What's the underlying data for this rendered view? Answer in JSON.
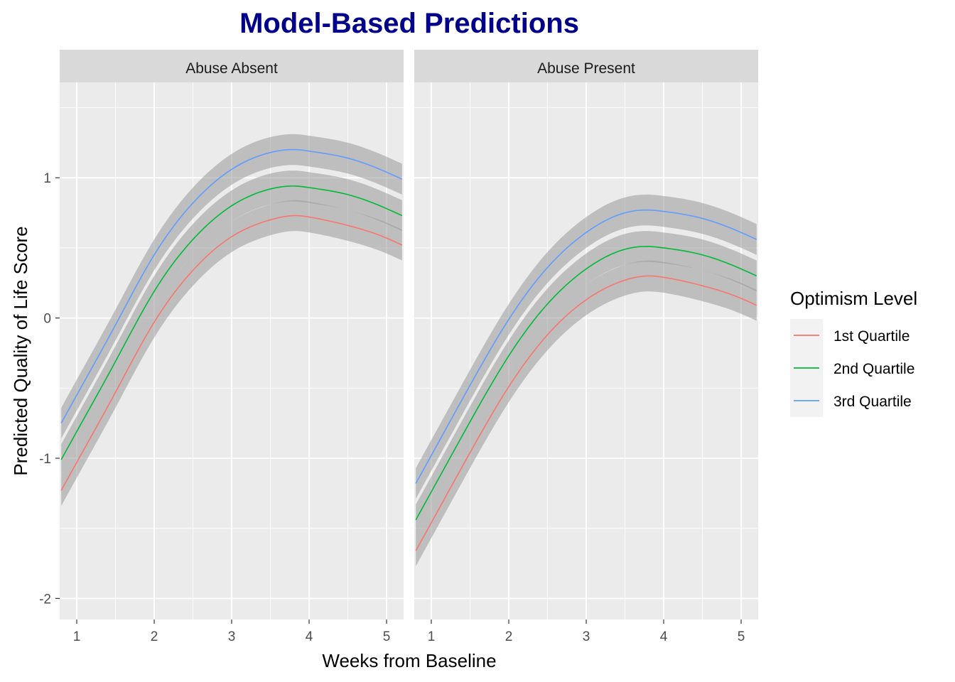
{
  "chart_data": {
    "type": "line",
    "title": "Model-Based Predictions",
    "xlabel": "Weeks from Baseline",
    "ylabel": "Predicted Quality of Life Score",
    "xlim": [
      0.78,
      5.22
    ],
    "ylim": [
      -2.15,
      1.68
    ],
    "x_ticks": [
      1,
      2,
      3,
      4,
      5
    ],
    "y_ticks": [
      -2,
      -1,
      0,
      1
    ],
    "grid": true,
    "ribbon_halfwidth": 0.11,
    "legend": {
      "title": "Optimism Level",
      "position": "right",
      "entries": [
        {
          "label": "1st Quartile",
          "color": "#F8766D"
        },
        {
          "label": "2nd Quartile",
          "color": "#00BA38"
        },
        {
          "label": "3rd Quartile",
          "color": "#619CFF"
        }
      ]
    },
    "panels": [
      {
        "label": "Abuse Absent",
        "series": [
          {
            "name": "1st Quartile",
            "color": "#F8766D",
            "x": [
              0.8,
              1.0,
              1.5,
              2.0,
              2.5,
              3.0,
              3.5,
              3.85,
              4.0,
              4.5,
              5.0,
              5.2
            ],
            "y": [
              -1.23,
              -1.03,
              -0.53,
              -0.03,
              0.34,
              0.58,
              0.7,
              0.73,
              0.72,
              0.66,
              0.57,
              0.52
            ]
          },
          {
            "name": "2nd Quartile",
            "color": "#00BA38",
            "x": [
              0.8,
              1.0,
              1.5,
              2.0,
              2.5,
              3.0,
              3.5,
              3.85,
              4.0,
              4.5,
              5.0,
              5.2
            ],
            "y": [
              -1.01,
              -0.81,
              -0.31,
              0.19,
              0.56,
              0.8,
              0.92,
              0.94,
              0.93,
              0.88,
              0.78,
              0.73
            ]
          },
          {
            "name": "3rd Quartile",
            "color": "#619CFF",
            "x": [
              0.8,
              1.0,
              1.5,
              2.0,
              2.5,
              3.0,
              3.5,
              3.85,
              4.0,
              4.5,
              5.0,
              5.2
            ],
            "y": [
              -0.75,
              -0.55,
              -0.05,
              0.45,
              0.82,
              1.06,
              1.18,
              1.2,
              1.19,
              1.14,
              1.04,
              0.99
            ]
          }
        ]
      },
      {
        "label": "Abuse Present",
        "series": [
          {
            "name": "1st Quartile",
            "color": "#F8766D",
            "x": [
              0.8,
              1.0,
              1.5,
              2.0,
              2.5,
              3.0,
              3.5,
              3.8,
              4.0,
              4.5,
              5.0,
              5.2
            ],
            "y": [
              -1.66,
              -1.46,
              -0.96,
              -0.49,
              -0.12,
              0.13,
              0.27,
              0.3,
              0.29,
              0.23,
              0.14,
              0.09
            ]
          },
          {
            "name": "2nd Quartile",
            "color": "#00BA38",
            "x": [
              0.8,
              1.0,
              1.5,
              2.0,
              2.5,
              3.0,
              3.5,
              3.8,
              4.0,
              4.5,
              5.0,
              5.2
            ],
            "y": [
              -1.44,
              -1.24,
              -0.74,
              -0.27,
              0.1,
              0.35,
              0.49,
              0.51,
              0.5,
              0.45,
              0.35,
              0.3
            ]
          },
          {
            "name": "3rd Quartile",
            "color": "#619CFF",
            "x": [
              0.8,
              1.0,
              1.5,
              2.0,
              2.5,
              3.0,
              3.5,
              3.8,
              4.0,
              4.5,
              5.0,
              5.2
            ],
            "y": [
              -1.18,
              -0.98,
              -0.48,
              -0.01,
              0.36,
              0.61,
              0.75,
              0.77,
              0.76,
              0.71,
              0.61,
              0.56
            ]
          }
        ]
      }
    ]
  }
}
